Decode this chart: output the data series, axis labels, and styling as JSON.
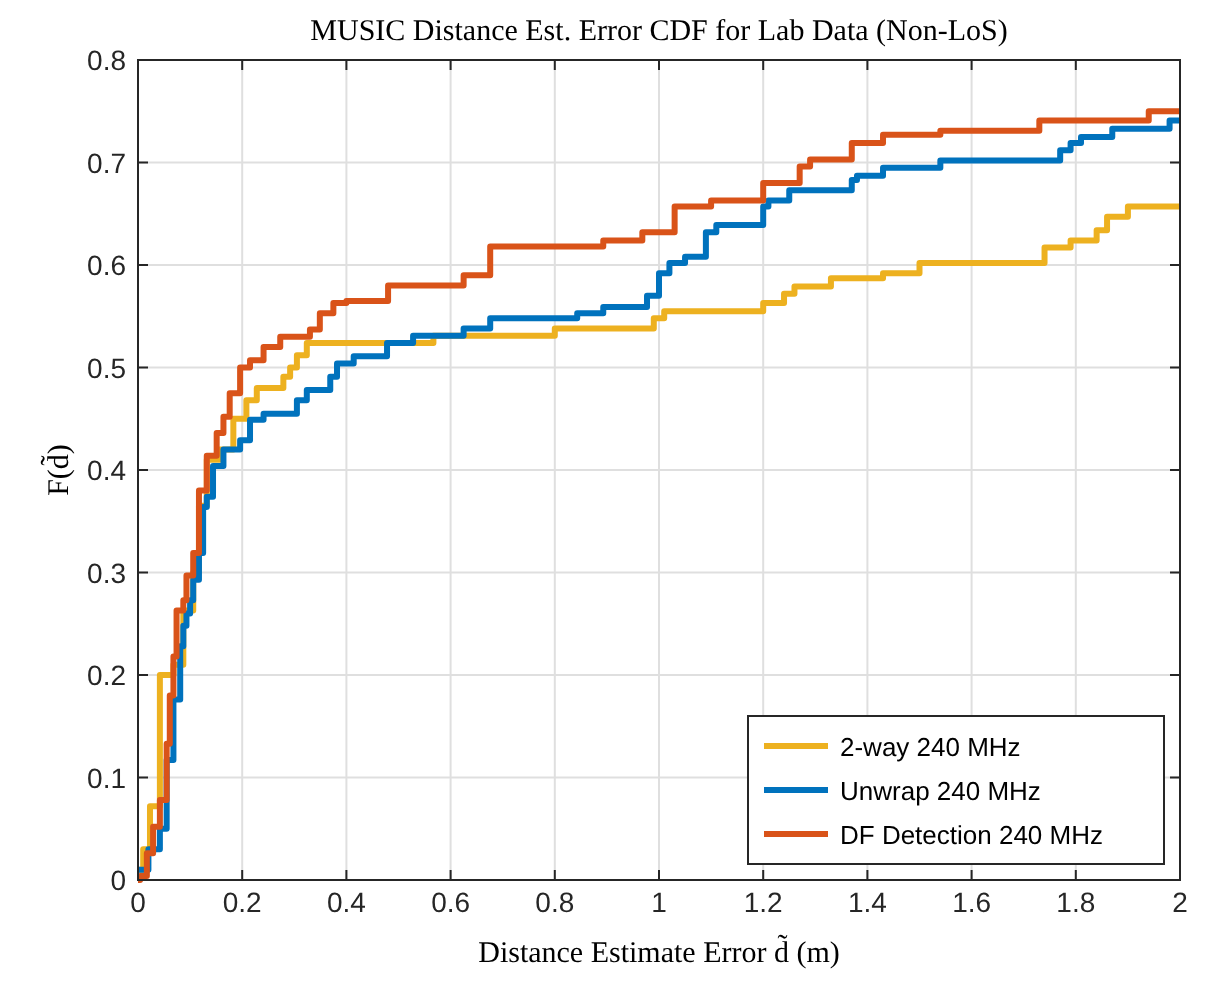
{
  "chart_data": {
    "type": "step",
    "title": "MUSIC Distance Est. Error CDF for Lab Data (Non-LoS)",
    "xlabel": "Distance Estimate Error d̃ (m)",
    "ylabel": "F(d̃)",
    "xlim": [
      0,
      2
    ],
    "ylim": [
      0,
      0.8
    ],
    "xticks": [
      0,
      0.2,
      0.4,
      0.6,
      0.8,
      1,
      1.2,
      1.4,
      1.6,
      1.8,
      2
    ],
    "yticks": [
      0,
      0.1,
      0.2,
      0.3,
      0.4,
      0.5,
      0.6,
      0.7,
      0.8
    ],
    "grid": true,
    "legend": "bottom right",
    "line_style": "solid",
    "series": [
      {
        "name": "2-way 240 MHz",
        "color": "#edb120",
        "x": [
          0,
          0.01,
          0.023,
          0.042,
          0.068,
          0.087,
          0.106,
          0.117,
          0.132,
          0.157,
          0.183,
          0.208,
          0.228,
          0.279,
          0.292,
          0.305,
          0.324,
          0.567,
          0.8,
          0.99,
          1.01,
          1.2,
          1.24,
          1.26,
          1.33,
          1.43,
          1.5,
          1.74,
          1.79,
          1.84,
          1.86,
          1.9,
          2
        ],
        "values": [
          0.01,
          0.03,
          0.072,
          0.2,
          0.21,
          0.263,
          0.3,
          0.365,
          0.41,
          0.42,
          0.45,
          0.468,
          0.48,
          0.491,
          0.5,
          0.512,
          0.524,
          0.531,
          0.538,
          0.548,
          0.555,
          0.563,
          0.572,
          0.579,
          0.587,
          0.592,
          0.602,
          0.617,
          0.624,
          0.634,
          0.647,
          0.657,
          0.657
        ]
      },
      {
        "name": "Unwrap 240 MHz",
        "color": "#0072bd",
        "x": [
          0,
          0.02,
          0.042,
          0.055,
          0.068,
          0.081,
          0.087,
          0.093,
          0.1,
          0.106,
          0.117,
          0.125,
          0.132,
          0.144,
          0.164,
          0.196,
          0.215,
          0.241,
          0.305,
          0.324,
          0.369,
          0.382,
          0.414,
          0.478,
          0.528,
          0.625,
          0.676,
          0.843,
          0.893,
          0.977,
          1,
          1.02,
          1.05,
          1.09,
          1.11,
          1.2,
          1.21,
          1.25,
          1.37,
          1.38,
          1.43,
          1.54,
          1.77,
          1.79,
          1.81,
          1.87,
          1.98,
          2
        ],
        "values": [
          0.01,
          0.03,
          0.05,
          0.117,
          0.176,
          0.228,
          0.248,
          0.26,
          0.273,
          0.293,
          0.319,
          0.364,
          0.374,
          0.404,
          0.42,
          0.429,
          0.449,
          0.455,
          0.468,
          0.478,
          0.491,
          0.504,
          0.511,
          0.524,
          0.531,
          0.538,
          0.548,
          0.553,
          0.559,
          0.57,
          0.592,
          0.602,
          0.608,
          0.632,
          0.639,
          0.657,
          0.663,
          0.673,
          0.683,
          0.687,
          0.695,
          0.702,
          0.712,
          0.719,
          0.725,
          0.733,
          0.741,
          0.741
        ]
      },
      {
        "name": "DF Detection 240 MHz",
        "color": "#d95319",
        "x": [
          0,
          0.004,
          0.017,
          0.029,
          0.042,
          0.055,
          0.061,
          0.068,
          0.074,
          0.087,
          0.093,
          0.106,
          0.117,
          0.132,
          0.151,
          0.164,
          0.176,
          0.196,
          0.215,
          0.241,
          0.273,
          0.33,
          0.349,
          0.375,
          0.4,
          0.48,
          0.625,
          0.676,
          0.893,
          0.968,
          1.03,
          1.1,
          1.2,
          1.27,
          1.29,
          1.37,
          1.43,
          1.54,
          1.73,
          1.94,
          2
        ],
        "values": [
          0,
          0.004,
          0.026,
          0.052,
          0.078,
          0.133,
          0.18,
          0.218,
          0.263,
          0.273,
          0.297,
          0.319,
          0.38,
          0.414,
          0.436,
          0.452,
          0.475,
          0.5,
          0.507,
          0.52,
          0.53,
          0.537,
          0.553,
          0.563,
          0.565,
          0.58,
          0.59,
          0.618,
          0.624,
          0.632,
          0.657,
          0.663,
          0.68,
          0.696,
          0.703,
          0.719,
          0.727,
          0.731,
          0.741,
          0.75,
          0.75
        ]
      }
    ]
  }
}
